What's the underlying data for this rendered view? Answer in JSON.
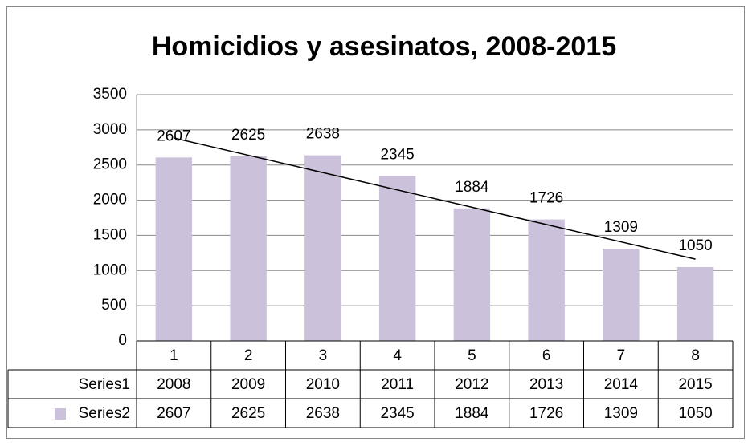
{
  "chart_data": {
    "type": "bar",
    "title": "Homicidios y asesinatos, 2008-2015",
    "categories": [
      "1",
      "2",
      "3",
      "4",
      "5",
      "6",
      "7",
      "8"
    ],
    "series": [
      {
        "name": "Series1",
        "values": [
          2008,
          2009,
          2010,
          2011,
          2012,
          2013,
          2014,
          2015
        ]
      },
      {
        "name": "Series2",
        "color": "#ccc1da",
        "values": [
          2607,
          2625,
          2638,
          2345,
          1884,
          1726,
          1309,
          1050
        ]
      }
    ],
    "plotted_series": [
      1
    ],
    "trendline": "linear",
    "data_labels": true,
    "data_table": true,
    "ylim": [
      0,
      3500
    ],
    "yticks": [
      0,
      500,
      1000,
      1500,
      2000,
      2500,
      3000,
      3500
    ],
    "grid": true
  }
}
